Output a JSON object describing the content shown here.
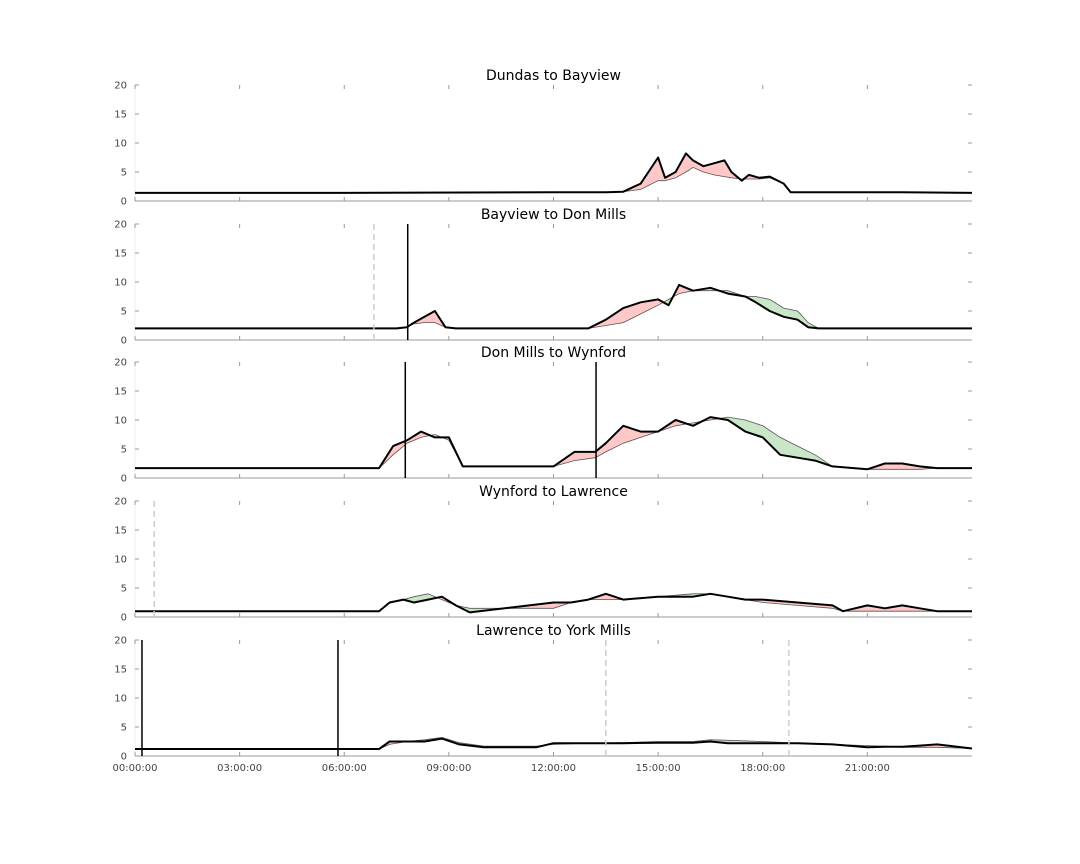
{
  "chart_data": [
    {
      "type": "line",
      "title": "Dundas to Bayview",
      "ylim": [
        0,
        20
      ],
      "yticks": [
        "0",
        "5",
        "10",
        "15",
        "20"
      ],
      "x": [
        0,
        6,
        12,
        13.5,
        14,
        14.5,
        15,
        15.2,
        15.5,
        15.8,
        16,
        16.3,
        16.6,
        16.9,
        17.1,
        17.4,
        17.6,
        17.9,
        18.2,
        18.6,
        18.8,
        19,
        20,
        22,
        24
      ],
      "series": [
        {
          "role": "observed",
          "values": [
            1.4,
            1.4,
            1.5,
            1.5,
            1.6,
            3,
            7.5,
            4,
            5,
            8.2,
            7,
            6,
            6.5,
            7,
            5,
            3.5,
            4.5,
            4,
            4.2,
            3,
            1.5,
            1.5,
            1.5,
            1.5,
            1.4
          ]
        },
        {
          "role": "expected",
          "values": [
            1.4,
            1.4,
            1.5,
            1.5,
            1.6,
            2,
            3.5,
            3.5,
            4,
            5,
            5.8,
            5,
            4.5,
            4.2,
            4,
            3.8,
            3.8,
            3.8,
            4,
            3,
            1.5,
            1.5,
            1.5,
            1.5,
            1.4
          ]
        }
      ],
      "vlines": []
    },
    {
      "type": "line",
      "title": "Bayview to Don Mills",
      "ylim": [
        0,
        20
      ],
      "yticks": [
        "0",
        "5",
        "10",
        "15",
        "20"
      ],
      "x": [
        0,
        5,
        7.5,
        7.8,
        8,
        8.3,
        8.6,
        8.9,
        9.2,
        12,
        13,
        13.5,
        14,
        14.5,
        15,
        15.3,
        15.6,
        16,
        16.5,
        17,
        17.5,
        17.8,
        18.2,
        18.6,
        19,
        19.3,
        19.6,
        20,
        22,
        24
      ],
      "series": [
        {
          "role": "observed",
          "values": [
            2,
            2,
            2,
            2.2,
            3,
            4,
            5,
            2.2,
            2,
            2,
            2,
            3.5,
            5.5,
            6.5,
            7,
            6,
            9.5,
            8.5,
            9,
            8,
            7.5,
            6.5,
            5,
            4,
            3.5,
            2.2,
            2,
            2,
            2,
            2
          ]
        },
        {
          "role": "expected",
          "values": [
            2,
            2,
            2,
            2.2,
            2.8,
            3,
            3,
            2.2,
            2,
            2,
            2,
            2.5,
            3,
            4.5,
            6,
            7,
            8,
            8.5,
            8.5,
            8.5,
            7.5,
            7.5,
            7,
            5.5,
            5,
            3,
            2,
            2,
            2,
            2
          ]
        }
      ],
      "vlines": [
        {
          "x": 6.85,
          "style": "dashed"
        },
        {
          "x": 7.82,
          "style": "solid"
        }
      ]
    },
    {
      "type": "line",
      "title": "Don Mills to Wynford",
      "ylim": [
        0,
        20
      ],
      "yticks": [
        "0",
        "5",
        "10",
        "15",
        "20"
      ],
      "x": [
        0,
        2,
        7,
        7.4,
        7.8,
        8.2,
        8.6,
        9,
        9.4,
        12,
        12.6,
        13.2,
        13.5,
        14,
        14.5,
        15,
        15.5,
        16,
        16.5,
        17,
        17.5,
        18,
        18.5,
        19,
        19.5,
        20,
        21,
        21.5,
        22,
        22.5,
        23,
        24
      ],
      "series": [
        {
          "role": "observed",
          "values": [
            1.7,
            1.7,
            1.7,
            5.5,
            6.5,
            8,
            7,
            7,
            2,
            2,
            4.5,
            4.5,
            6,
            9,
            8,
            8,
            10,
            9,
            10.5,
            10,
            8,
            7,
            4,
            3.5,
            3,
            2,
            1.5,
            2.5,
            2.5,
            2,
            1.7,
            1.7
          ]
        },
        {
          "role": "expected",
          "values": [
            1.7,
            1.7,
            1.7,
            4,
            6,
            7,
            7.5,
            6.5,
            2,
            2,
            3,
            3.5,
            4.5,
            6,
            7,
            8,
            9,
            9.5,
            10,
            10.5,
            10,
            9,
            7,
            5.5,
            4,
            2,
            1.5,
            1.5,
            1.5,
            1.5,
            1.7,
            1.7
          ]
        }
      ],
      "vlines": [
        {
          "x": 7.75,
          "style": "solid"
        },
        {
          "x": 13.22,
          "style": "solid"
        }
      ]
    },
    {
      "type": "line",
      "title": "Wynford to Lawrence",
      "ylim": [
        0,
        20
      ],
      "yticks": [
        "0",
        "5",
        "10",
        "15",
        "20"
      ],
      "x": [
        0,
        3,
        7,
        7.3,
        7.7,
        8,
        8.4,
        8.8,
        9.2,
        9.6,
        12,
        12.5,
        13,
        13.5,
        14,
        15,
        16,
        16.5,
        17,
        17.5,
        18,
        19,
        20,
        20.3,
        21,
        21.5,
        22,
        22.5,
        23,
        24
      ],
      "series": [
        {
          "role": "observed",
          "values": [
            1,
            1,
            1,
            2.5,
            3,
            2.5,
            3,
            3.5,
            2,
            0.8,
            2.5,
            2.5,
            3,
            4,
            3,
            3.5,
            3.5,
            4,
            3.5,
            3,
            3,
            2.5,
            2,
            1,
            2,
            1.5,
            2,
            1.5,
            1,
            1
          ]
        },
        {
          "role": "expected",
          "values": [
            1,
            1,
            1,
            2.5,
            3,
            3.5,
            4,
            3,
            2,
            1.5,
            1.5,
            2.5,
            3,
            3,
            3,
            3.5,
            4,
            4,
            3.5,
            3,
            2.5,
            2,
            1.5,
            1,
            1,
            1,
            1,
            1,
            1,
            1
          ]
        }
      ],
      "vlines": [
        {
          "x": 0.55,
          "style": "dashed"
        }
      ]
    },
    {
      "type": "line",
      "title": "Lawrence to York Mills",
      "ylim": [
        0,
        20
      ],
      "yticks": [
        "0",
        "5",
        "10",
        "15",
        "20"
      ],
      "xticks": [
        "00:00:00",
        "03:00:00",
        "06:00:00",
        "09:00:00",
        "12:00:00",
        "15:00:00",
        "18:00:00",
        "21:00:00"
      ],
      "x": [
        0,
        3,
        7,
        7.3,
        7.8,
        8.3,
        8.8,
        9.3,
        10,
        11.5,
        12,
        13,
        14,
        15,
        16,
        16.5,
        17,
        18,
        19,
        20,
        21,
        21.5,
        22,
        22.5,
        23,
        24
      ],
      "series": [
        {
          "role": "observed",
          "values": [
            1.2,
            1.2,
            1.2,
            2.5,
            2.5,
            2.5,
            3,
            2,
            1.5,
            1.5,
            2.2,
            2.2,
            2.2,
            2.3,
            2.3,
            2.5,
            2.2,
            2.2,
            2.2,
            2,
            1.5,
            1.6,
            1.6,
            1.8,
            2,
            1.3
          ]
        },
        {
          "role": "expected",
          "values": [
            1.2,
            1.2,
            1.2,
            2,
            2.5,
            2.8,
            3.2,
            2.3,
            1.7,
            1.7,
            2,
            2.2,
            2.3,
            2.5,
            2.5,
            2.8,
            2.7,
            2.5,
            2.2,
            2,
            1.8,
            1.7,
            1.5,
            1.5,
            1.5,
            1.3
          ]
        }
      ],
      "vlines": [
        {
          "x": 0.2,
          "style": "solid"
        },
        {
          "x": 5.82,
          "style": "solid"
        },
        {
          "x": 13.5,
          "style": "dashed"
        },
        {
          "x": 18.75,
          "style": "dashed"
        }
      ]
    }
  ],
  "colors": {
    "above_fill": "#ffc8c8",
    "below_fill": "#c9e6c9",
    "observed_line": "#000000",
    "expected_line": "#555555",
    "solid_vline": "#000000",
    "dashed_vline": "#cccccc",
    "axis": "#999999"
  }
}
